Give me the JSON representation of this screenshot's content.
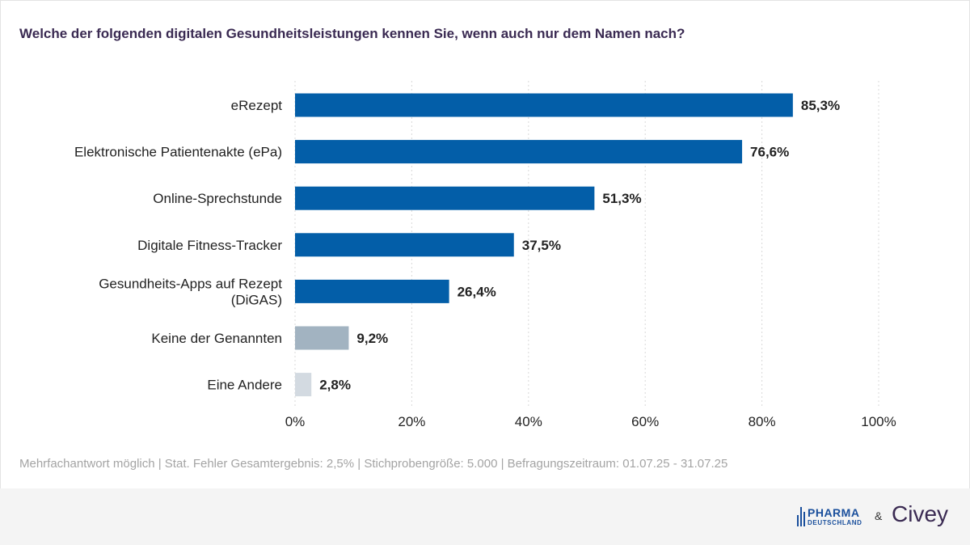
{
  "title": "Welche der folgenden digitalen Gesundheitsleistungen kennen Sie, wenn auch nur dem Namen nach?",
  "chart_data": {
    "type": "bar",
    "orientation": "horizontal",
    "categories": [
      "eRezept",
      "Elektronische Patientenakte (ePa)",
      "Online-Sprechstunde",
      "Digitale Fitness-Tracker",
      "Gesundheits-Apps auf Rezept (DiGAS)",
      "Keine der Genannten",
      "Eine Andere"
    ],
    "category_lines": [
      [
        "eRezept"
      ],
      [
        "Elektronische Patientenakte (ePa)"
      ],
      [
        "Online-Sprechstunde"
      ],
      [
        "Digitale Fitness-Tracker"
      ],
      [
        "Gesundheits-Apps auf Rezept",
        "(DiGAS)"
      ],
      [
        "Keine der Genannten"
      ],
      [
        "Eine Andere"
      ]
    ],
    "values": [
      85.3,
      76.6,
      51.3,
      37.5,
      26.4,
      9.2,
      2.8
    ],
    "value_labels": [
      "85,3%",
      "76,6%",
      "51,3%",
      "37,5%",
      "26,4%",
      "9,2%",
      "2,8%"
    ],
    "colors": [
      "#035ea8",
      "#035ea8",
      "#035ea8",
      "#035ea8",
      "#035ea8",
      "#a2b3c1",
      "#d3dae1"
    ],
    "xlim": [
      0,
      100
    ],
    "xticks": [
      0,
      20,
      40,
      60,
      80,
      100
    ],
    "xtick_labels": [
      "0%",
      "20%",
      "40%",
      "60%",
      "80%",
      "100%"
    ],
    "grid": true
  },
  "footnote": "Mehrfachantwort möglich | Stat. Fehler Gesamtergebnis: 2,5% | Stichprobengröße: 5.000 | Befragungszeitraum: 01.07.25 - 31.07.25",
  "footer": {
    "pharma_main": "PHARMA",
    "pharma_sub": "DEUTSCHLAND",
    "ampersand": "&",
    "civey": "Civey"
  }
}
